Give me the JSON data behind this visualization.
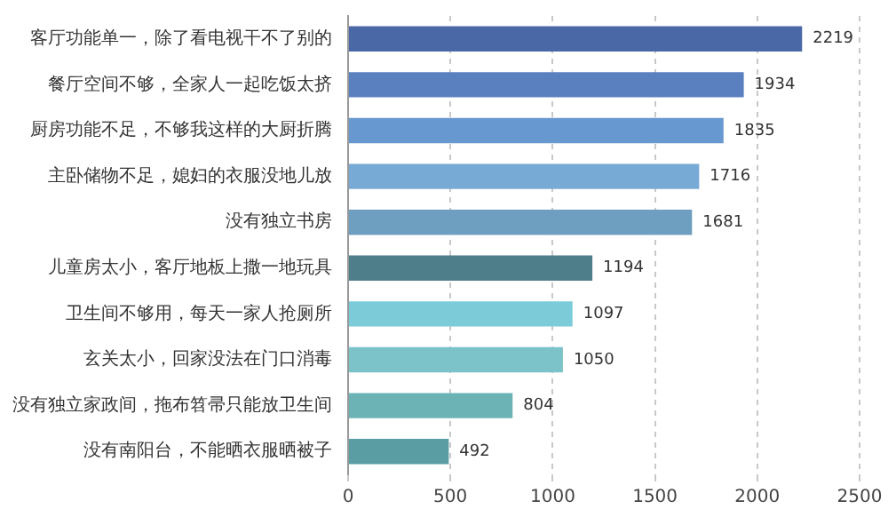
{
  "chart_data": {
    "type": "bar",
    "orientation": "horizontal",
    "categories": [
      "客厅功能单一，除了看电视干不了别的",
      "餐厅空间不够，全家人一起吃饭太挤",
      "厨房功能不足，不够我这样的大厨折腾",
      "主卧储物不足，媳妇的衣服没地儿放",
      "没有独立书房",
      "儿童房太小，客厅地板上撒一地玩具",
      "卫生间不够用，每天一家人抢厕所",
      "玄关太小，回家没法在门口消毒",
      "没有独立家政间，拖布笤帚只能放卫生间",
      "没有南阳台，不能晒衣服晒被子"
    ],
    "values": [
      2219,
      1934,
      1835,
      1716,
      1681,
      1194,
      1097,
      1050,
      804,
      492
    ],
    "colors": [
      "#4a67a6",
      "#5a80bf",
      "#6898d0",
      "#78aad6",
      "#6f9fc0",
      "#4f7e8b",
      "#7ccbd8",
      "#7cc3c9",
      "#6cb3b5",
      "#5a9ea3"
    ],
    "xlim": [
      0,
      2500
    ],
    "xticks": [
      0,
      500,
      1000,
      1500,
      2000,
      2500
    ],
    "grid": "x",
    "data_labels": true,
    "legend": false
  }
}
